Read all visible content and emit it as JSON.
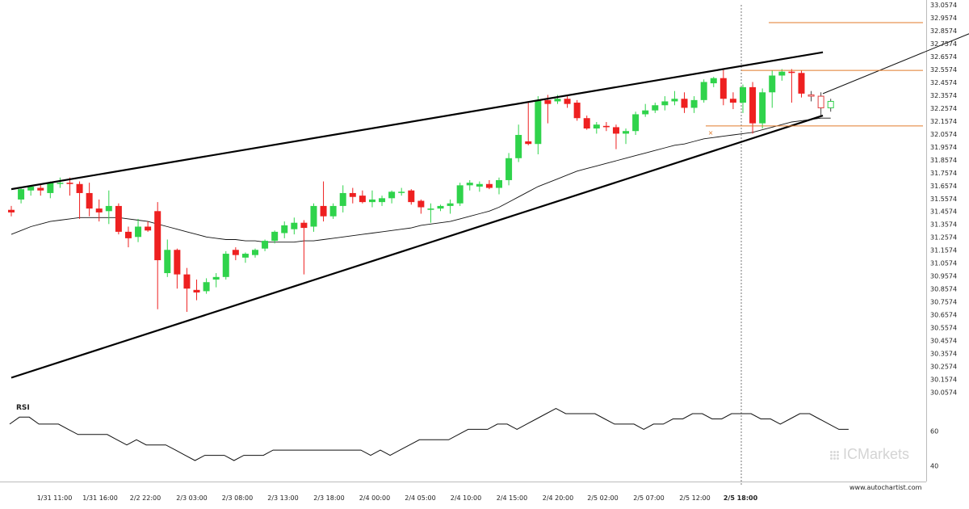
{
  "chart_data": [
    {
      "type": "candlestick",
      "y_ticks": [
        "33.0574",
        "32.9574",
        "32.8574",
        "32.7574",
        "32.6574",
        "32.5574",
        "32.4574",
        "32.3574",
        "32.2574",
        "32.1574",
        "32.0574",
        "31.9574",
        "31.8574",
        "31.7574",
        "31.6574",
        "31.5574",
        "31.4574",
        "31.3574",
        "31.2574",
        "31.1574",
        "31.0574",
        "30.9574",
        "30.8574",
        "30.7574",
        "30.6574",
        "30.5574",
        "30.4574",
        "30.3574",
        "30.2574",
        "30.1574",
        "30.0574"
      ],
      "ylim": [
        30.0574,
        33.0574
      ],
      "x_ticks": [
        "1/31 11:00",
        "1/31 16:00",
        "2/2 22:00",
        "2/3 03:00",
        "2/3 08:00",
        "2/3 13:00",
        "2/3 18:00",
        "2/4 00:00",
        "2/4 05:00",
        "2/4 10:00",
        "2/4 15:00",
        "2/4 20:00",
        "2/5 02:00",
        "2/5 07:00",
        "2/5 12:00",
        "2/5 18:00"
      ],
      "current_time_label": "2/5 18:00",
      "up_color": "#2fd34b",
      "down_color": "#ee2020",
      "candles": [
        {
          "o": 31.47,
          "h": 31.5,
          "l": 31.42,
          "c": 31.45
        },
        {
          "o": 31.55,
          "h": 31.65,
          "l": 31.52,
          "c": 31.63
        },
        {
          "o": 31.62,
          "h": 31.66,
          "l": 31.58,
          "c": 31.65
        },
        {
          "o": 31.64,
          "h": 31.67,
          "l": 31.58,
          "c": 31.62
        },
        {
          "o": 31.6,
          "h": 31.69,
          "l": 31.56,
          "c": 31.68
        },
        {
          "o": 31.68,
          "h": 31.72,
          "l": 31.64,
          "c": 31.68
        },
        {
          "o": 31.68,
          "h": 31.72,
          "l": 31.58,
          "c": 31.67
        },
        {
          "o": 31.67,
          "h": 31.69,
          "l": 31.4,
          "c": 31.6
        },
        {
          "o": 31.6,
          "h": 31.68,
          "l": 31.42,
          "c": 31.48
        },
        {
          "o": 31.48,
          "h": 31.55,
          "l": 31.38,
          "c": 31.45
        },
        {
          "o": 31.46,
          "h": 31.62,
          "l": 31.36,
          "c": 31.5
        },
        {
          "o": 31.5,
          "h": 31.52,
          "l": 31.28,
          "c": 31.3
        },
        {
          "o": 31.3,
          "h": 31.34,
          "l": 31.18,
          "c": 31.25
        },
        {
          "o": 31.26,
          "h": 31.4,
          "l": 31.22,
          "c": 31.34
        },
        {
          "o": 31.34,
          "h": 31.38,
          "l": 31.3,
          "c": 31.31
        },
        {
          "o": 31.46,
          "h": 31.53,
          "l": 30.7,
          "c": 31.08
        },
        {
          "o": 30.98,
          "h": 31.24,
          "l": 30.95,
          "c": 31.16
        },
        {
          "o": 31.16,
          "h": 31.17,
          "l": 30.86,
          "c": 30.97
        },
        {
          "o": 30.97,
          "h": 31.02,
          "l": 30.68,
          "c": 30.86
        },
        {
          "o": 30.85,
          "h": 30.93,
          "l": 30.77,
          "c": 30.83
        },
        {
          "o": 30.84,
          "h": 30.94,
          "l": 30.82,
          "c": 30.91
        },
        {
          "o": 30.93,
          "h": 30.98,
          "l": 30.87,
          "c": 30.95
        },
        {
          "o": 30.95,
          "h": 31.15,
          "l": 30.93,
          "c": 31.13
        },
        {
          "o": 31.16,
          "h": 31.18,
          "l": 31.08,
          "c": 31.12
        },
        {
          "o": 31.1,
          "h": 31.14,
          "l": 31.06,
          "c": 31.13
        },
        {
          "o": 31.12,
          "h": 31.17,
          "l": 31.1,
          "c": 31.16
        },
        {
          "o": 31.17,
          "h": 31.24,
          "l": 31.15,
          "c": 31.23
        },
        {
          "o": 31.23,
          "h": 31.31,
          "l": 31.21,
          "c": 31.3
        },
        {
          "o": 31.29,
          "h": 31.38,
          "l": 31.25,
          "c": 31.35
        },
        {
          "o": 31.32,
          "h": 31.41,
          "l": 31.28,
          "c": 31.37
        },
        {
          "o": 31.37,
          "h": 31.39,
          "l": 30.97,
          "c": 31.33
        },
        {
          "o": 31.34,
          "h": 31.52,
          "l": 31.3,
          "c": 31.5
        },
        {
          "o": 31.5,
          "h": 31.69,
          "l": 31.38,
          "c": 31.42
        },
        {
          "o": 31.42,
          "h": 31.52,
          "l": 31.4,
          "c": 31.5
        },
        {
          "o": 31.5,
          "h": 31.66,
          "l": 31.45,
          "c": 31.6
        },
        {
          "o": 31.6,
          "h": 31.64,
          "l": 31.52,
          "c": 31.57
        },
        {
          "o": 31.58,
          "h": 31.62,
          "l": 31.52,
          "c": 31.53
        },
        {
          "o": 31.53,
          "h": 31.62,
          "l": 31.49,
          "c": 31.55
        },
        {
          "o": 31.53,
          "h": 31.58,
          "l": 31.5,
          "c": 31.56
        },
        {
          "o": 31.56,
          "h": 31.62,
          "l": 31.52,
          "c": 31.61
        },
        {
          "o": 31.61,
          "h": 31.64,
          "l": 31.58,
          "c": 31.61
        },
        {
          "o": 31.62,
          "h": 31.63,
          "l": 31.51,
          "c": 31.53
        },
        {
          "o": 31.54,
          "h": 31.55,
          "l": 31.44,
          "c": 31.49
        },
        {
          "o": 31.47,
          "h": 31.52,
          "l": 31.37,
          "c": 31.48
        },
        {
          "o": 31.48,
          "h": 31.51,
          "l": 31.46,
          "c": 31.5
        },
        {
          "o": 31.5,
          "h": 31.55,
          "l": 31.44,
          "c": 31.52
        },
        {
          "o": 31.52,
          "h": 31.68,
          "l": 31.5,
          "c": 31.66
        },
        {
          "o": 31.66,
          "h": 31.7,
          "l": 31.62,
          "c": 31.68
        },
        {
          "o": 31.65,
          "h": 31.69,
          "l": 31.61,
          "c": 31.67
        },
        {
          "o": 31.67,
          "h": 31.7,
          "l": 31.63,
          "c": 31.64
        },
        {
          "o": 31.64,
          "h": 31.72,
          "l": 31.59,
          "c": 31.7
        },
        {
          "o": 31.7,
          "h": 31.91,
          "l": 31.66,
          "c": 31.87
        },
        {
          "o": 31.87,
          "h": 32.13,
          "l": 31.84,
          "c": 32.05
        },
        {
          "o": 32.0,
          "h": 32.3,
          "l": 31.97,
          "c": 31.98
        },
        {
          "o": 31.98,
          "h": 32.35,
          "l": 31.9,
          "c": 32.32
        },
        {
          "o": 32.32,
          "h": 32.36,
          "l": 32.14,
          "c": 32.29
        },
        {
          "o": 32.31,
          "h": 32.36,
          "l": 32.29,
          "c": 32.33
        },
        {
          "o": 32.33,
          "h": 32.35,
          "l": 32.26,
          "c": 32.29
        },
        {
          "o": 32.3,
          "h": 32.32,
          "l": 32.16,
          "c": 32.18
        },
        {
          "o": 32.18,
          "h": 32.2,
          "l": 32.09,
          "c": 32.1
        },
        {
          "o": 32.1,
          "h": 32.15,
          "l": 32.06,
          "c": 32.13
        },
        {
          "o": 32.12,
          "h": 32.15,
          "l": 32.08,
          "c": 32.11
        },
        {
          "o": 32.11,
          "h": 32.13,
          "l": 31.94,
          "c": 32.06
        },
        {
          "o": 32.06,
          "h": 32.1,
          "l": 31.98,
          "c": 32.08
        },
        {
          "o": 32.08,
          "h": 32.23,
          "l": 32.05,
          "c": 32.21
        },
        {
          "o": 32.21,
          "h": 32.29,
          "l": 32.19,
          "c": 32.24
        },
        {
          "o": 32.24,
          "h": 32.3,
          "l": 32.22,
          "c": 32.28
        },
        {
          "o": 32.28,
          "h": 32.35,
          "l": 32.24,
          "c": 32.31
        },
        {
          "o": 32.31,
          "h": 32.39,
          "l": 32.28,
          "c": 32.33
        },
        {
          "o": 32.33,
          "h": 32.38,
          "l": 32.22,
          "c": 32.26
        },
        {
          "o": 32.26,
          "h": 32.35,
          "l": 32.22,
          "c": 32.32
        },
        {
          "o": 32.32,
          "h": 32.48,
          "l": 32.3,
          "c": 32.46
        },
        {
          "o": 32.45,
          "h": 32.5,
          "l": 32.42,
          "c": 32.49
        },
        {
          "o": 32.49,
          "h": 32.56,
          "l": 32.28,
          "c": 32.33
        },
        {
          "o": 32.33,
          "h": 32.38,
          "l": 32.25,
          "c": 32.3
        },
        {
          "o": 32.3,
          "h": 32.44,
          "l": 32.22,
          "c": 32.42
        },
        {
          "o": 32.42,
          "h": 32.46,
          "l": 32.06,
          "c": 32.14
        },
        {
          "o": 32.14,
          "h": 32.41,
          "l": 32.1,
          "c": 32.38
        },
        {
          "o": 32.38,
          "h": 32.55,
          "l": 32.26,
          "c": 32.51
        },
        {
          "o": 32.51,
          "h": 32.56,
          "l": 32.47,
          "c": 32.54
        },
        {
          "o": 32.54,
          "h": 32.56,
          "l": 32.3,
          "c": 32.53
        },
        {
          "o": 32.53,
          "h": 32.55,
          "l": 32.34,
          "c": 32.37
        },
        {
          "o": 32.36,
          "h": 32.39,
          "l": 32.31,
          "c": 32.35
        },
        {
          "o": 32.35,
          "h": 32.38,
          "l": 32.19,
          "c": 32.26
        },
        {
          "o": 32.26,
          "h": 32.33,
          "l": 32.23,
          "c": 32.31
        }
      ],
      "moving_average": [
        31.28,
        31.31,
        31.34,
        31.36,
        31.38,
        31.39,
        31.4,
        31.41,
        31.41,
        31.41,
        31.41,
        31.41,
        31.4,
        31.39,
        31.38,
        31.36,
        31.34,
        31.32,
        31.3,
        31.28,
        31.26,
        31.25,
        31.24,
        31.24,
        31.23,
        31.23,
        31.22,
        31.22,
        31.22,
        31.22,
        31.23,
        31.23,
        31.24,
        31.25,
        31.26,
        31.27,
        31.28,
        31.29,
        31.3,
        31.31,
        31.32,
        31.33,
        31.35,
        31.36,
        31.37,
        31.38,
        31.4,
        31.42,
        31.44,
        31.46,
        31.49,
        31.53,
        31.57,
        31.61,
        31.65,
        31.68,
        31.71,
        31.74,
        31.77,
        31.79,
        31.81,
        31.83,
        31.85,
        31.87,
        31.89,
        31.91,
        31.93,
        31.95,
        31.97,
        31.98,
        32.0,
        32.02,
        32.03,
        32.04,
        32.05,
        32.06,
        32.07,
        32.09,
        32.11,
        32.13,
        32.15,
        32.16,
        32.17,
        32.18,
        32.18
      ],
      "pattern_lines": [
        {
          "name": "resistance",
          "from": [
            0,
            31.63
          ],
          "to": [
            83.2,
            32.69
          ]
        },
        {
          "name": "support",
          "from": [
            0,
            30.17
          ],
          "to": [
            83.2,
            32.2
          ]
        }
      ],
      "levels": [
        {
          "name": "upper-target",
          "value": 32.92,
          "color": "#e07a2a"
        },
        {
          "name": "resistance-level",
          "value": 32.55,
          "color": "#e07a2a"
        },
        {
          "name": "support-level",
          "value": 32.12,
          "color": "#e07a2a"
        }
      ],
      "projection": {
        "from": [
          83.2,
          32.37
        ],
        "to": [
          101.3,
          32.93
        ]
      }
    },
    {
      "type": "line",
      "title": "RSI",
      "y_ticks": [
        "60",
        "40"
      ],
      "values": [
        64,
        68,
        68,
        64,
        64,
        64,
        61,
        58,
        58,
        58,
        58,
        55,
        52,
        55,
        52,
        52,
        52,
        49,
        46,
        43,
        46,
        46,
        46,
        43,
        46,
        46,
        46,
        49,
        49,
        49,
        49,
        49,
        49,
        49,
        49,
        49,
        49,
        46,
        49,
        46,
        49,
        52,
        55,
        55,
        55,
        55,
        58,
        61,
        61,
        61,
        64,
        64,
        61,
        64,
        67,
        70,
        73,
        70,
        70,
        70,
        70,
        67,
        64,
        64,
        64,
        61,
        64,
        64,
        67,
        67,
        70,
        70,
        67,
        67,
        70,
        70,
        70,
        67,
        67,
        64,
        67,
        70,
        70,
        67,
        64,
        61,
        61
      ]
    }
  ],
  "brand": {
    "text": "ICMarkets"
  },
  "source": "www.autochartist.com"
}
